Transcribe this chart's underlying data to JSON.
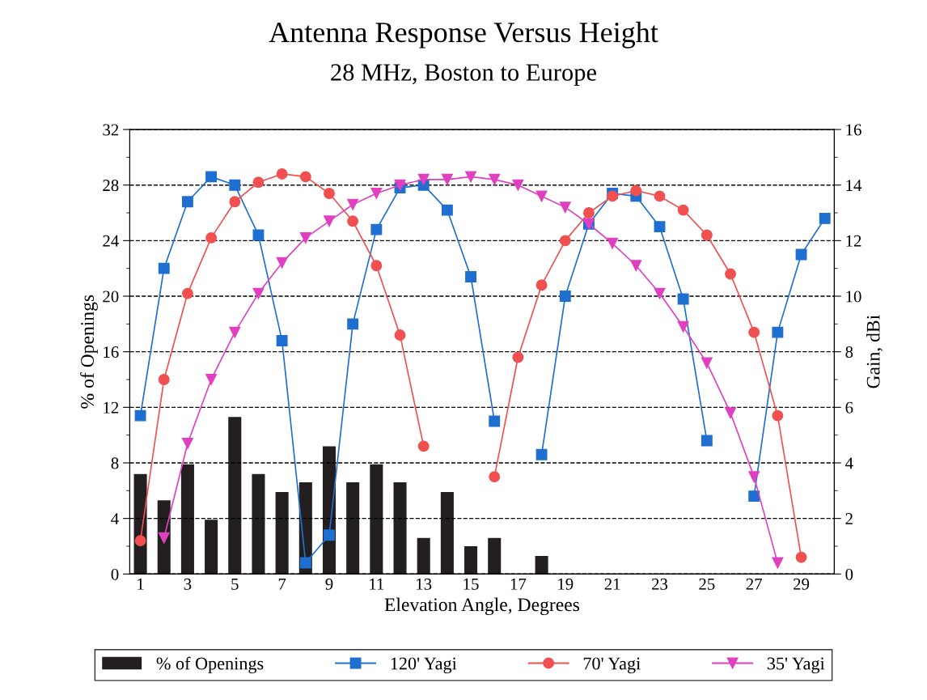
{
  "chart_data": {
    "type": "bar",
    "title": "Antenna Response Versus Height",
    "subtitle": "28 MHz, Boston to Europe",
    "xlabel": "Elevation Angle, Degrees",
    "ylabel": "% of Openings",
    "y2label": "Gain, dBi",
    "categories": [
      "1",
      null,
      "3",
      null,
      "5",
      null,
      "7",
      null,
      "9",
      null,
      "11",
      null,
      "13",
      null,
      "15",
      null,
      "17",
      null,
      "19",
      null,
      "21",
      null,
      "23",
      null,
      "25",
      null,
      "27",
      null,
      "29",
      null
    ],
    "ylim": [
      0,
      32
    ],
    "yticks": [
      0,
      4,
      8,
      12,
      16,
      20,
      24,
      28,
      32
    ],
    "y2lim": [
      0,
      16
    ],
    "y2ticks": [
      0,
      2,
      4,
      6,
      8,
      10,
      12,
      14,
      16
    ],
    "grid": "y",
    "legend": "bottom",
    "series": [
      {
        "name": "% of Openings",
        "color": "#231f20",
        "values": [
          7.2,
          5.3,
          7.9,
          3.9,
          11.3,
          7.2,
          5.9,
          6.6,
          9.2,
          6.6,
          7.9,
          6.6,
          2.6,
          5.9,
          2.0,
          2.6,
          null,
          1.3,
          null,
          null,
          null,
          null,
          null,
          null,
          null,
          null,
          null,
          null,
          null,
          null
        ]
      },
      {
        "name": "120' Yagi",
        "type": "line",
        "axis": "y2",
        "marker": "square",
        "color": "#1f6fd0",
        "values": [
          5.7,
          11.0,
          13.4,
          14.3,
          14.0,
          12.2,
          8.4,
          0.4,
          1.4,
          9.0,
          12.4,
          13.9,
          14.0,
          13.1,
          10.7,
          5.5,
          null,
          4.3,
          10.0,
          12.6,
          13.7,
          13.6,
          12.5,
          9.9,
          4.8,
          null,
          2.8,
          8.7,
          11.5,
          12.8
        ]
      },
      {
        "name": "70' Yagi",
        "type": "line",
        "axis": "y2",
        "marker": "circle",
        "color": "#f05050",
        "values": [
          1.2,
          7.0,
          10.1,
          12.1,
          13.4,
          14.1,
          14.4,
          14.3,
          13.7,
          12.7,
          11.1,
          8.6,
          4.6,
          null,
          null,
          3.5,
          7.8,
          10.4,
          12.0,
          13.0,
          13.6,
          13.8,
          13.6,
          13.1,
          12.2,
          10.8,
          8.7,
          5.7,
          0.6,
          null
        ]
      },
      {
        "name": "35' Yagi",
        "type": "line",
        "axis": "y2",
        "marker": "triangle",
        "color": "#e040c0",
        "values": [
          null,
          1.3,
          4.7,
          7.0,
          8.7,
          10.1,
          11.2,
          12.1,
          12.7,
          13.3,
          13.7,
          14.0,
          14.2,
          14.2,
          14.3,
          14.2,
          14.0,
          13.6,
          13.2,
          12.6,
          11.9,
          11.1,
          10.1,
          8.9,
          7.6,
          5.8,
          3.5,
          0.4,
          null,
          null
        ]
      }
    ]
  }
}
